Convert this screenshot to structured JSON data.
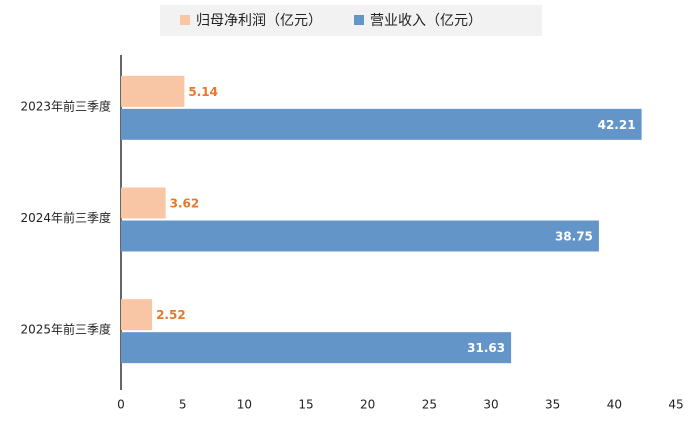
{
  "chart_data": {
    "type": "hbar",
    "categories": [
      "2023年前三季度",
      "2024年前三季度",
      "2025年前三季度"
    ],
    "series": [
      {
        "name": "归母净利润（亿元）",
        "color": "#f8c5a5",
        "label_color": "#e8782a",
        "values": [
          5.14,
          3.62,
          2.52
        ]
      },
      {
        "name": "营业收入（亿元）",
        "color": "#6495c9",
        "label_color": "#ffffff",
        "values": [
          42.21,
          38.75,
          31.63
        ]
      }
    ],
    "xlim": [
      0,
      45
    ],
    "xticks": [
      0,
      5,
      10,
      15,
      20,
      25,
      30,
      35,
      40,
      45
    ],
    "grid": false,
    "legend": "top"
  }
}
